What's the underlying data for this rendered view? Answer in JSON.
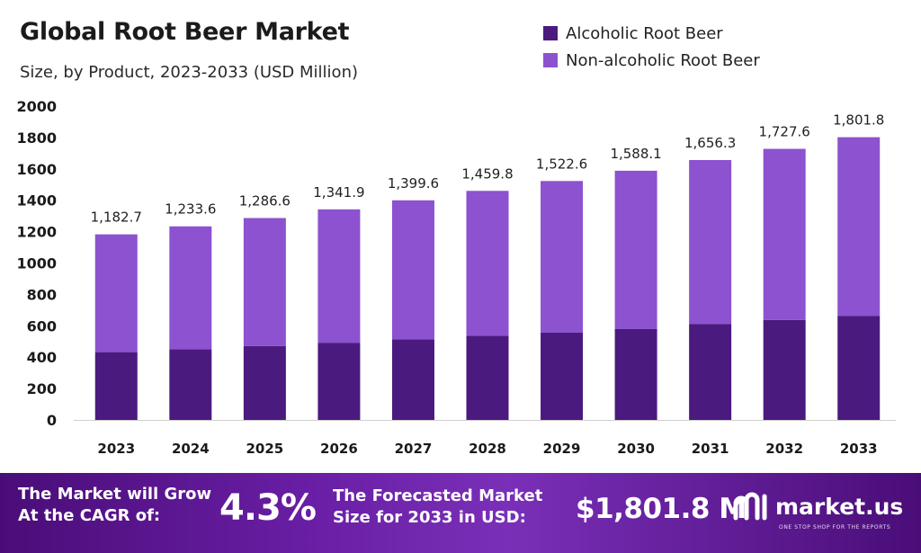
{
  "header": {
    "title": "Global Root Beer Market",
    "subtitle": "Size, by Product, 2023-2033 (USD Million)"
  },
  "colors": {
    "alcoholic": "#4a1a7f",
    "non_alcoholic": "#8c52cf",
    "banner_dark": "#4a0d78",
    "banner_light": "#7a2fb8"
  },
  "chart_data": {
    "type": "bar",
    "stacked": true,
    "categories": [
      "2023",
      "2024",
      "2025",
      "2026",
      "2027",
      "2028",
      "2029",
      "2030",
      "2031",
      "2032",
      "2033"
    ],
    "series": [
      {
        "name": "Alcoholic Root Beer",
        "values": [
          432,
          451,
          471,
          492,
          514,
          537,
          556,
          579,
          612,
          637,
          662
        ]
      },
      {
        "name": "Non-alcoholic Root Beer",
        "values": [
          750.7,
          782.6,
          815.6,
          849.9,
          885.6,
          922.8,
          966.6,
          1009.1,
          1044.3,
          1090.6,
          1139.8
        ]
      }
    ],
    "totals": [
      1182.7,
      1233.6,
      1286.6,
      1341.9,
      1399.6,
      1459.8,
      1522.6,
      1588.1,
      1656.3,
      1727.6,
      1801.8
    ],
    "total_labels": [
      "1,182.7",
      "1,233.6",
      "1,286.6",
      "1,341.9",
      "1,399.6",
      "1,459.8",
      "1,522.6",
      "1,588.1",
      "1,656.3",
      "1,727.6",
      "1,801.8"
    ],
    "ylim": [
      0,
      2000
    ],
    "yticks": [
      0,
      200,
      400,
      600,
      800,
      1000,
      1200,
      1400,
      1600,
      1800,
      2000
    ],
    "grid": false,
    "legend_position": "top-right"
  },
  "banner": {
    "grow_line1": "The Market will Grow",
    "grow_line2": "At the CAGR of:",
    "cagr": "4.3%",
    "forecast_line1": "The Forecasted Market",
    "forecast_line2": "Size for 2033 in USD:",
    "forecast_value": "$1,801.8 M",
    "brand_name": "market.us",
    "brand_tagline": "ONE STOP SHOP FOR THE REPORTS",
    "brand_icon": "market-us-logo-icon"
  }
}
